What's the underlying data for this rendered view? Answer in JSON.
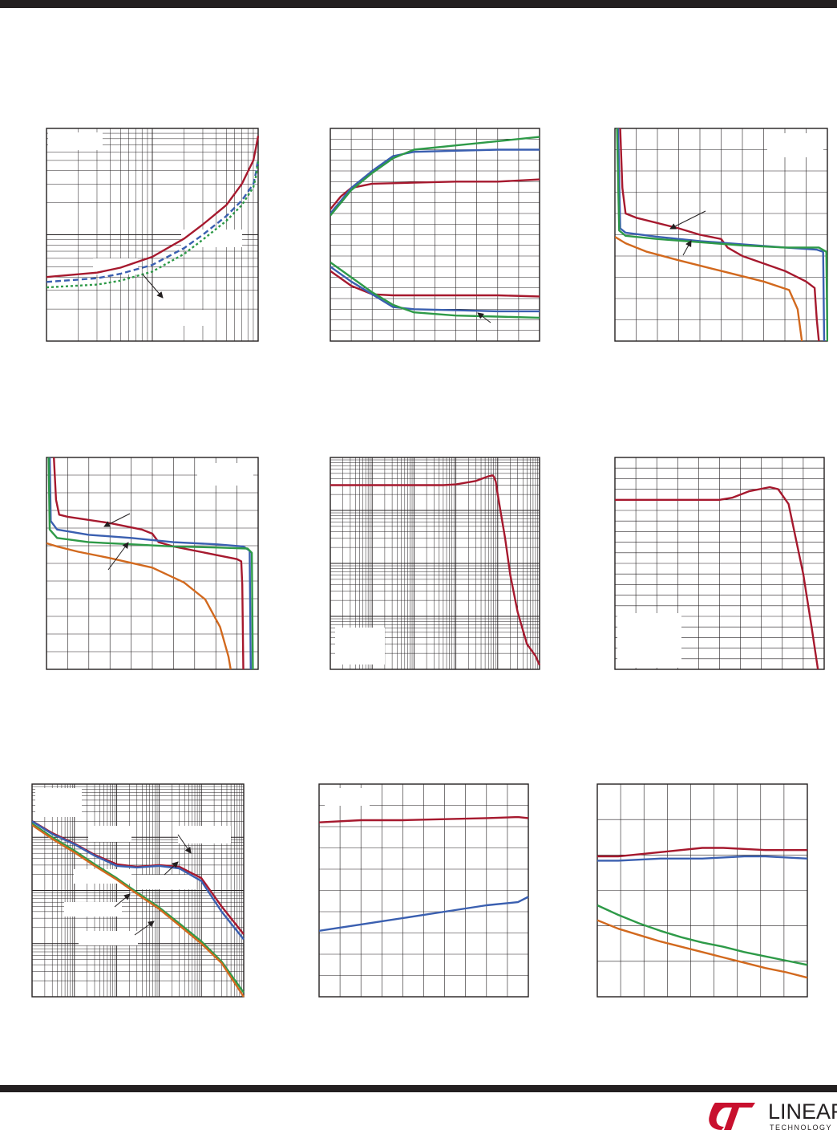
{
  "page": {
    "brand": {
      "name": "LINEAR",
      "tagline": "TECHNOLOGY",
      "colors": {
        "mark": "#c8102e",
        "text": "#231f20"
      }
    }
  },
  "chart_data": [
    {
      "type": "line",
      "xscale": "log",
      "yscale": "log",
      "xlim": [
        1,
        100
      ],
      "ylim": [
        0.1,
        10
      ],
      "grid": true,
      "series": [
        {
          "color": "#a6192e",
          "dash": "solid",
          "x": [
            1,
            3,
            5,
            10,
            20,
            30,
            50,
            70,
            90,
            95,
            100
          ],
          "y": [
            0.4,
            0.44,
            0.49,
            0.62,
            0.92,
            1.25,
            1.9,
            3.0,
            5.0,
            6.5,
            8.5
          ]
        },
        {
          "color": "#3a5fb0",
          "dash": "dashed",
          "x": [
            1,
            3,
            5,
            10,
            20,
            30,
            50,
            70,
            90,
            95,
            100
          ],
          "y": [
            0.36,
            0.39,
            0.43,
            0.52,
            0.75,
            1.0,
            1.5,
            2.1,
            3.0,
            3.8,
            5.2
          ]
        },
        {
          "color": "#2e9a48",
          "dash": "dotted",
          "x": [
            1,
            3,
            5,
            10,
            20,
            30,
            50,
            70,
            90,
            95,
            100
          ],
          "y": [
            0.32,
            0.34,
            0.37,
            0.45,
            0.66,
            0.9,
            1.35,
            1.9,
            2.8,
            3.5,
            4.9
          ]
        }
      ]
    },
    {
      "type": "line",
      "xlim": [
        0,
        10
      ],
      "ylim": [
        0,
        10
      ],
      "grid": true,
      "series": [
        {
          "color": "#a6192e",
          "x": [
            0,
            0.5,
            1,
            2,
            4,
            6,
            8,
            10
          ],
          "y": [
            6.2,
            6.8,
            7.2,
            7.4,
            7.45,
            7.5,
            7.5,
            7.6
          ]
        },
        {
          "color": "#3a5fb0",
          "x": [
            0,
            0.5,
            1,
            2,
            3,
            4,
            6,
            8,
            10
          ],
          "y": [
            6.0,
            6.6,
            7.2,
            8.0,
            8.7,
            8.9,
            8.95,
            9.0,
            9.0
          ]
        },
        {
          "color": "#2e9a48",
          "x": [
            0,
            0.5,
            1,
            2,
            3,
            4,
            6,
            8,
            10
          ],
          "y": [
            5.9,
            6.5,
            7.1,
            7.9,
            8.6,
            9.0,
            9.2,
            9.4,
            9.6
          ]
        },
        {
          "color": "#a6192e",
          "x": [
            0,
            1,
            2,
            3,
            4,
            6,
            8,
            10
          ],
          "y": [
            3.3,
            2.6,
            2.2,
            2.15,
            2.15,
            2.15,
            2.15,
            2.1
          ]
        },
        {
          "color": "#3a5fb0",
          "x": [
            0,
            1,
            2,
            3,
            4,
            6,
            8,
            10
          ],
          "y": [
            3.5,
            2.8,
            2.2,
            1.6,
            1.5,
            1.45,
            1.4,
            1.4
          ]
        },
        {
          "color": "#2e9a48",
          "x": [
            0,
            1,
            2,
            3,
            4,
            6,
            8,
            10
          ],
          "y": [
            3.7,
            3.0,
            2.3,
            1.7,
            1.35,
            1.2,
            1.15,
            1.1
          ]
        }
      ]
    },
    {
      "type": "line",
      "xlim": [
        0,
        10
      ],
      "ylim": [
        0,
        10
      ],
      "grid": true,
      "series": [
        {
          "color": "#a6192e",
          "x": [
            0.25,
            0.35,
            0.5,
            1,
            3,
            4,
            5,
            5.3,
            6,
            8,
            9,
            9.4,
            9.5,
            9.6
          ],
          "y": [
            10,
            7.2,
            6.0,
            5.8,
            5.3,
            5.0,
            4.8,
            4.4,
            4.0,
            3.3,
            2.8,
            2.5,
            1.0,
            0.0
          ]
        },
        {
          "color": "#3a5fb0",
          "x": [
            0.15,
            0.25,
            0.5,
            2,
            4,
            6,
            8,
            9.5,
            9.8,
            9.85
          ],
          "y": [
            10,
            5.3,
            5.1,
            4.9,
            4.7,
            4.55,
            4.4,
            4.3,
            4.2,
            0.0
          ]
        },
        {
          "color": "#2e9a48",
          "x": [
            0.1,
            0.2,
            0.5,
            2,
            4,
            6,
            8,
            9.6,
            9.95,
            10
          ],
          "y": [
            10,
            5.2,
            4.95,
            4.8,
            4.65,
            4.5,
            4.4,
            4.4,
            4.2,
            0.0
          ]
        },
        {
          "color": "#d2691e",
          "x": [
            0,
            0.5,
            1.5,
            3,
            5,
            7,
            8.2,
            8.6,
            8.8
          ],
          "y": [
            4.9,
            4.6,
            4.2,
            3.8,
            3.3,
            2.8,
            2.4,
            1.5,
            0.0
          ]
        }
      ]
    },
    {
      "type": "line",
      "xlim": [
        0,
        10
      ],
      "ylim": [
        0,
        10
      ],
      "grid": true,
      "series": [
        {
          "color": "#a6192e",
          "x": [
            0.35,
            0.45,
            0.6,
            1,
            3,
            4.5,
            5,
            5.3,
            6,
            8,
            9,
            9.2,
            9.25,
            9.3
          ],
          "y": [
            10,
            8.0,
            7.3,
            7.2,
            6.9,
            6.6,
            6.4,
            6.0,
            5.8,
            5.4,
            5.2,
            5.1,
            4.0,
            0.0
          ]
        },
        {
          "color": "#3a5fb0",
          "x": [
            0.15,
            0.2,
            0.5,
            2,
            4,
            6,
            8,
            9.3,
            9.6,
            9.65
          ],
          "y": [
            10,
            7.0,
            6.6,
            6.35,
            6.2,
            6.0,
            5.9,
            5.8,
            5.6,
            0.0
          ]
        },
        {
          "color": "#2e9a48",
          "x": [
            0.1,
            0.15,
            0.5,
            2,
            4,
            6,
            8,
            9.5,
            9.7,
            9.75
          ],
          "y": [
            10,
            6.6,
            6.2,
            6.0,
            5.9,
            5.8,
            5.75,
            5.7,
            5.5,
            0.0
          ]
        },
        {
          "color": "#d2691e",
          "x": [
            0,
            0.5,
            1.5,
            3,
            5,
            6.5,
            7.5,
            8.2,
            8.6,
            8.7
          ],
          "y": [
            5.95,
            5.8,
            5.55,
            5.25,
            4.8,
            4.1,
            3.3,
            2.0,
            0.6,
            0.0
          ]
        }
      ]
    },
    {
      "type": "line",
      "xscale": "log",
      "yscale": "log",
      "xlim": [
        1,
        100000
      ],
      "ylim": [
        0.01,
        100
      ],
      "grid": true,
      "series": [
        {
          "color": "#a6192e",
          "x": [
            1,
            100,
            500,
            1000,
            3000,
            6000,
            7500,
            8000,
            9000,
            10000,
            15000,
            20000,
            30000,
            50000,
            80000,
            100000
          ],
          "y": [
            30,
            30,
            30,
            31,
            36,
            44,
            46,
            44,
            35,
            20,
            3.0,
            0.6,
            0.12,
            0.03,
            0.018,
            0.012
          ]
        }
      ]
    },
    {
      "type": "line",
      "xlim": [
        0,
        10
      ],
      "ylim": [
        0,
        10
      ],
      "grid": true,
      "series": [
        {
          "color": "#a6192e",
          "x": [
            0,
            3,
            5,
            5.6,
            6.4,
            7.4,
            7.8,
            8.3,
            9,
            9.4,
            9.7
          ],
          "y": [
            8.0,
            8.0,
            8.0,
            8.1,
            8.4,
            8.6,
            8.5,
            7.8,
            4.5,
            2.0,
            0.0
          ]
        }
      ]
    },
    {
      "type": "line",
      "xscale": "log",
      "yscale": "log",
      "xlim": [
        10,
        1000000
      ],
      "ylim": [
        1,
        10000
      ],
      "grid": true,
      "series": [
        {
          "color": "#a6192e",
          "x": [
            10,
            30,
            100,
            300,
            1000,
            3000,
            10000,
            30000,
            100000,
            300000,
            1000000
          ],
          "y": [
            2020,
            1200,
            760,
            470,
            310,
            280,
            300,
            280,
            170,
            50,
            15
          ]
        },
        {
          "color": "#3a5fb0",
          "x": [
            10,
            30,
            100,
            300,
            1000,
            3000,
            10000,
            30000,
            100000,
            300000,
            1000000
          ],
          "y": [
            2000,
            1150,
            740,
            450,
            290,
            270,
            290,
            260,
            150,
            40,
            12
          ]
        },
        {
          "color": "#2e9a48",
          "x": [
            10,
            30,
            100,
            300,
            1000,
            3000,
            10000,
            30000,
            100000,
            300000,
            1000000
          ],
          "y": [
            1800,
            1000,
            560,
            310,
            170,
            92,
            48,
            24,
            11,
            4.6,
            1.2
          ]
        },
        {
          "color": "#d2691e",
          "x": [
            10,
            30,
            100,
            300,
            1000,
            3000,
            10000,
            30000,
            100000,
            300000,
            1000000
          ],
          "y": [
            1700,
            930,
            520,
            290,
            160,
            86,
            45,
            22,
            10,
            4.3,
            1.0
          ]
        }
      ]
    },
    {
      "type": "line",
      "xlim": [
        0,
        10
      ],
      "ylim": [
        0,
        10
      ],
      "grid": true,
      "series": [
        {
          "color": "#a6192e",
          "x": [
            0,
            2,
            4,
            6,
            8,
            9.5,
            10
          ],
          "y": [
            8.2,
            8.3,
            8.3,
            8.35,
            8.4,
            8.45,
            8.4
          ]
        },
        {
          "color": "#3a5fb0",
          "x": [
            0,
            2,
            4,
            6,
            8,
            9.5,
            10
          ],
          "y": [
            3.1,
            3.4,
            3.7,
            4.0,
            4.3,
            4.45,
            4.7
          ]
        }
      ]
    },
    {
      "type": "line",
      "xlim": [
        0,
        10
      ],
      "ylim": [
        0,
        10
      ],
      "grid": true,
      "series": [
        {
          "color": "#a6192e",
          "x": [
            0,
            1,
            3,
            5,
            6,
            8,
            10
          ],
          "y": [
            6.6,
            6.6,
            6.8,
            7.0,
            7.0,
            6.9,
            6.9
          ]
        },
        {
          "color": "#3a5fb0",
          "x": [
            0,
            1,
            3,
            5,
            6,
            7,
            8,
            10
          ],
          "y": [
            6.4,
            6.4,
            6.5,
            6.5,
            6.55,
            6.6,
            6.6,
            6.5
          ]
        },
        {
          "color": "#2e9a48",
          "x": [
            0,
            1,
            2,
            3,
            4,
            5,
            6,
            7,
            8,
            9,
            10
          ],
          "y": [
            4.3,
            3.85,
            3.45,
            3.1,
            2.8,
            2.55,
            2.35,
            2.1,
            1.9,
            1.7,
            1.5
          ]
        },
        {
          "color": "#d2691e",
          "x": [
            0,
            1,
            2,
            3,
            4,
            5,
            6,
            7,
            8,
            9,
            10
          ],
          "y": [
            3.6,
            3.2,
            2.9,
            2.6,
            2.35,
            2.1,
            1.85,
            1.6,
            1.35,
            1.15,
            0.9
          ]
        }
      ]
    }
  ]
}
